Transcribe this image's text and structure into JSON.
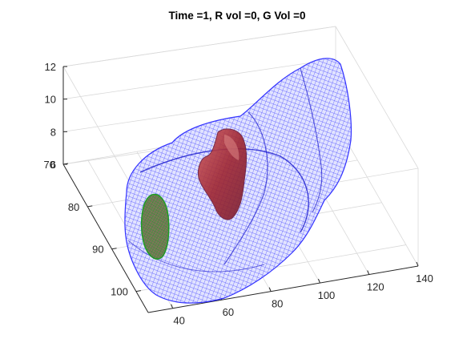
{
  "chart_data": {
    "type": "3d-surface-mesh",
    "title": "Time =1, R vol =0, G Vol =0",
    "xlabel": "",
    "ylabel": "",
    "zlabel": "",
    "x_ticks": [
      40,
      60,
      80,
      100,
      120,
      140
    ],
    "y_ticks": [
      70,
      80,
      90,
      100
    ],
    "z_ticks": [
      6,
      8,
      10,
      12
    ],
    "xlim": [
      30,
      140
    ],
    "ylim": [
      70,
      105
    ],
    "zlim": [
      6,
      12
    ],
    "grid": true,
    "surfaces": [
      {
        "label": "",
        "color": "#1a1aff",
        "style": "wireframe mesh"
      },
      {
        "label": "",
        "color": "#b0303a",
        "style": "filled patch"
      },
      {
        "label": "",
        "color": "#1a8a1a",
        "style": "wireframe mesh"
      }
    ]
  }
}
